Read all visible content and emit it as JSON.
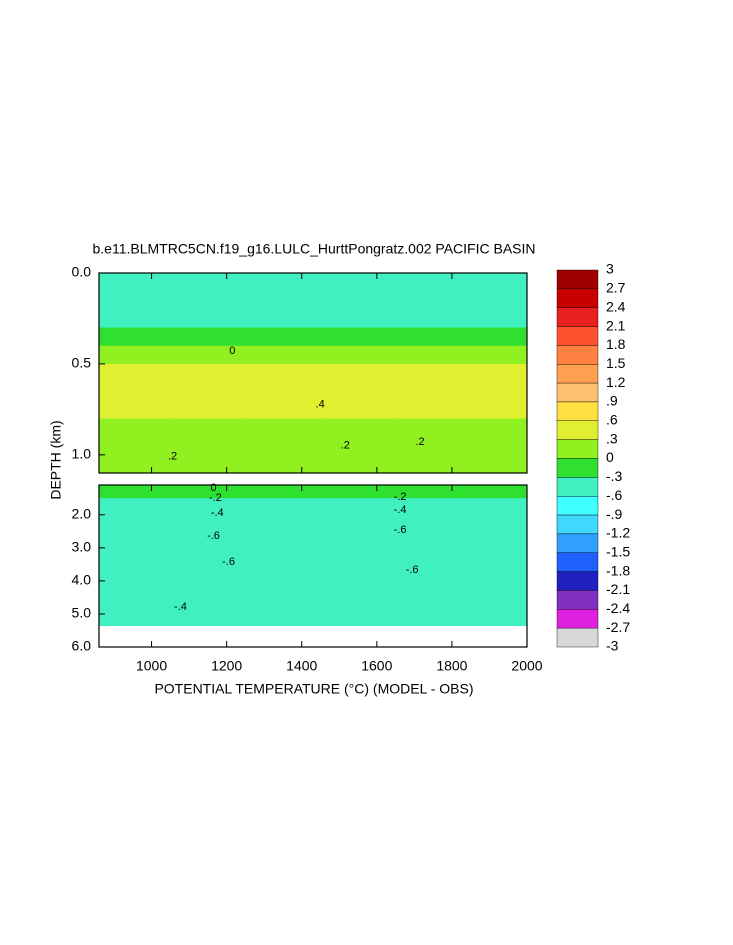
{
  "chart_data": {
    "type": "contour",
    "title": "b.e11.BLMTRC5CN.f19_g16.LULC_HurttPongratz.002 PACIFIC BASIN",
    "xlabel": "POTENTIAL TEMPERATURE (°C) (MODEL - OBS)",
    "ylabel": "DEPTH (km)",
    "xlim": [
      860,
      2000
    ],
    "xticks": [
      1000,
      1200,
      1400,
      1600,
      1800,
      2000
    ],
    "x_edges": [
      860,
      1050,
      1250,
      1450,
      1650,
      1850,
      2000
    ],
    "panels": [
      {
        "ylim": [
          0,
          1.1
        ],
        "yticks": [
          {
            "value": 0,
            "label": "0.0"
          },
          {
            "value": 0.5,
            "label": "0.5"
          },
          {
            "value": 1,
            "label": "1.0"
          }
        ],
        "depth_edges": [
          0,
          0.1,
          0.2,
          0.3,
          0.4,
          0.5,
          0.6,
          0.7,
          0.8,
          0.9,
          1.0,
          1.1
        ],
        "z": [
          [
            -0.5,
            -0.5,
            -0.5,
            -0.5,
            -0.5,
            -0.5
          ],
          [
            -0.4,
            -0.4,
            -0.4,
            -0.4,
            -0.4,
            -0.4
          ],
          [
            -0.35,
            -0.35,
            -0.35,
            -0.35,
            -0.35,
            -0.35
          ],
          [
            -0.2,
            -0.2,
            -0.2,
            -0.2,
            -0.2,
            -0.2
          ],
          [
            0.1,
            0.1,
            0.1,
            0.1,
            0.1,
            0.1
          ],
          [
            0.35,
            0.35,
            0.35,
            0.35,
            0.35,
            0.35
          ],
          [
            0.45,
            0.5,
            0.45,
            0.4,
            0.4,
            0.35
          ],
          [
            0.35,
            0.35,
            0.35,
            0.35,
            0.35,
            0.35
          ],
          [
            0.25,
            0.25,
            0.25,
            0.25,
            0.25,
            0.25
          ],
          [
            0.2,
            0.2,
            0.2,
            0.2,
            0.2,
            0.2
          ],
          [
            0.15,
            0.15,
            0.15,
            0.15,
            0.15,
            0.15
          ]
        ]
      },
      {
        "ylim": [
          1.1,
          6
        ],
        "yticks": [
          {
            "value": 2,
            "label": "2.0"
          },
          {
            "value": 3,
            "label": "3.0"
          },
          {
            "value": 4,
            "label": "4.0"
          },
          {
            "value": 5,
            "label": "5.0"
          },
          {
            "value": 6,
            "label": "6.0"
          }
        ],
        "depth_edges": [
          1.1,
          1.5,
          2.0,
          2.5,
          3.0,
          3.5,
          4.0,
          4.5,
          5.0,
          5.35,
          6.0
        ],
        "z": [
          [
            -0.1,
            -0.1,
            -0.1,
            -0.1,
            -0.1,
            -0.1
          ],
          [
            -0.35,
            -0.35,
            -0.35,
            -0.35,
            -0.35,
            -0.35
          ],
          [
            -0.45,
            -0.45,
            -0.45,
            -0.45,
            -0.45,
            -0.45
          ],
          [
            -0.55,
            -0.55,
            -0.55,
            -0.55,
            -0.55,
            -0.55
          ],
          [
            -0.58,
            -0.58,
            -0.58,
            -0.58,
            -0.58,
            -0.58
          ],
          [
            -0.57,
            -0.57,
            -0.57,
            -0.57,
            -0.57,
            -0.57
          ],
          [
            -0.52,
            -0.52,
            -0.52,
            -0.52,
            -0.52,
            -0.52
          ],
          [
            -0.45,
            -0.45,
            -0.45,
            -0.45,
            -0.45,
            -0.45
          ],
          [
            -0.35,
            -0.35,
            -0.35,
            -0.35,
            -0.35,
            -0.35
          ],
          [
            null,
            null,
            null,
            null,
            null,
            null
          ]
        ]
      }
    ],
    "contour_labels": [
      {
        "x": 1215,
        "depth": 0.43,
        "label": "0"
      },
      {
        "x": 1449,
        "depth": 0.725,
        "label": ".4"
      },
      {
        "x": 1056,
        "depth": 1.01,
        "label": ".2"
      },
      {
        "x": 1516,
        "depth": 0.95,
        "label": ".2"
      },
      {
        "x": 1715,
        "depth": 0.93,
        "label": ".2"
      },
      {
        "x": 1165,
        "depth": 1.2,
        "label": "0"
      },
      {
        "x": 1170,
        "depth": 1.5,
        "label": "-.2"
      },
      {
        "x": 1175,
        "depth": 1.95,
        "label": "-.4"
      },
      {
        "x": 1165,
        "depth": 2.65,
        "label": "-.6"
      },
      {
        "x": 1205,
        "depth": 3.43,
        "label": "-.6"
      },
      {
        "x": 1662,
        "depth": 1.46,
        "label": "-.2"
      },
      {
        "x": 1662,
        "depth": 1.86,
        "label": "-.4"
      },
      {
        "x": 1662,
        "depth": 2.46,
        "label": "-.6"
      },
      {
        "x": 1694,
        "depth": 3.68,
        "label": "-.6"
      },
      {
        "x": 1077,
        "depth": 4.8,
        "label": "-.4"
      }
    ],
    "colorbar": {
      "levels": [
        3,
        2.7,
        2.4,
        2.1,
        1.8,
        1.5,
        1.2,
        {
          "value": 0.9,
          "label": ".9"
        },
        {
          "value": 0.6,
          "label": ".6"
        },
        {
          "value": 0.3,
          "label": ".3"
        },
        0,
        {
          "value": -0.3,
          "label": "-.3"
        },
        {
          "value": -0.6,
          "label": "-.6"
        },
        {
          "value": -0.9,
          "label": "-.9"
        },
        -1.2,
        -1.5,
        -1.8,
        -2.1,
        -2.4,
        -2.7,
        -3
      ],
      "colors": [
        "#a00000",
        "#c80000",
        "#e82020",
        "#ff5030",
        "#ff8040",
        "#ffa050",
        "#ffc070",
        "#ffe040",
        "#e0f030",
        "#90f020",
        "#30e030",
        "#40f0c0",
        "#40ffff",
        "#40d8ff",
        "#30a0ff",
        "#2060ff",
        "#2020c0",
        "#8030c0",
        "#e020e0",
        "#d8d8d8"
      ]
    }
  }
}
